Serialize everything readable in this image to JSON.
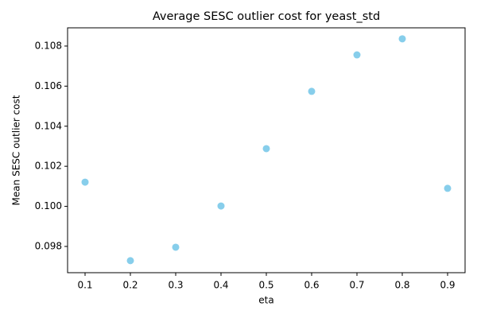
{
  "chart_data": {
    "type": "scatter",
    "title": "Average SESC outlier cost for yeast_std",
    "x_label": "eta",
    "y_label": "Mean SESC outlier cost",
    "x": [
      0.1,
      0.2,
      0.3,
      0.4,
      0.5,
      0.6,
      0.7,
      0.8,
      0.9
    ],
    "values": [
      0.10121,
      0.09729,
      0.09796,
      0.10002,
      0.10288,
      0.10574,
      0.10756,
      0.10836,
      0.1009
    ],
    "color": "#87ceeb",
    "xlim": [
      0.0614,
      0.9386
    ],
    "xticks": [
      0.1,
      0.2,
      0.3,
      0.4,
      0.5,
      0.6,
      0.7,
      0.8,
      0.9
    ],
    "ylim": [
      0.09669,
      0.10891
    ],
    "yticks": [
      0.098,
      {
        "value": 0.1,
        "label": "0.100"
      },
      0.102,
      0.104,
      0.106,
      0.108
    ],
    "grid": false
  }
}
